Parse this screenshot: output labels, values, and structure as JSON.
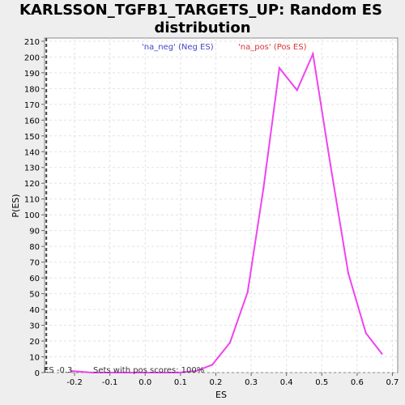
{
  "chart_data": {
    "type": "line",
    "title_line1": "KARLSSON_TGFB1_TARGETS_UP: Random ES",
    "title_line2": "distribution",
    "xlabel": "ES",
    "ylabel": "P(ES)",
    "xlim": [
      -0.285,
      0.715
    ],
    "ylim": [
      0,
      212
    ],
    "grid": true,
    "x_ticks": [
      "-0.2",
      "-0.1",
      "0.0",
      "0.1",
      "0.2",
      "0.3",
      "0.4",
      "0.5",
      "0.6",
      "0.7"
    ],
    "x_tick_values": [
      -0.2,
      -0.1,
      0.0,
      0.1,
      0.2,
      0.3,
      0.4,
      0.5,
      0.6,
      0.7
    ],
    "y_ticks": [
      0,
      10,
      20,
      30,
      40,
      50,
      60,
      70,
      80,
      90,
      100,
      110,
      120,
      130,
      140,
      150,
      160,
      170,
      180,
      190,
      200,
      210
    ],
    "legend": {
      "neg_label": "'na_neg' (Neg ES)",
      "pos_label": "'na_pos' (Pos ES)",
      "neg_color": "#4444cc",
      "pos_color": "#dd3333",
      "placement": "top"
    },
    "series": [
      {
        "color": "#ee44ee",
        "x": [
          -0.21,
          -0.15,
          -0.1,
          -0.055,
          0.0,
          0.045,
          0.095,
          0.145,
          0.19,
          0.24,
          0.29,
          0.335,
          0.38,
          0.43,
          0.475,
          0.525,
          0.575,
          0.625,
          0.67
        ],
        "y": [
          1,
          0,
          0,
          0,
          0,
          0,
          0,
          1,
          5,
          19,
          51,
          117,
          193,
          179,
          202,
          131,
          63,
          25,
          12
        ]
      }
    ],
    "es_marker": {
      "x": -0.28,
      "label": "ES -0.3"
    },
    "annotation": "Sets with pos scores: 100%"
  }
}
